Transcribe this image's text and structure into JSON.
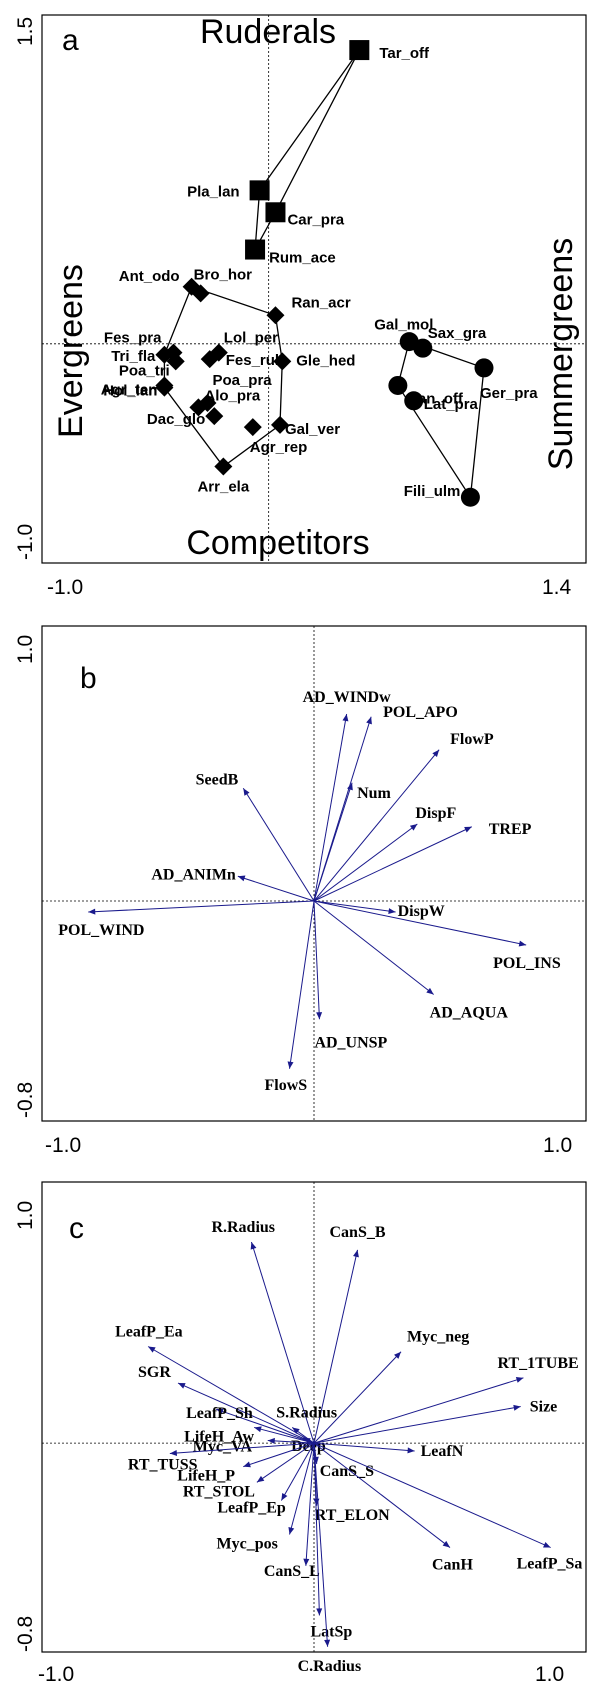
{
  "chart_data": [
    {
      "panel": "a",
      "type": "scatter",
      "xlim": [
        -1.0,
        1.4
      ],
      "ylim": [
        -1.0,
        1.5
      ],
      "x_tick_labels": [
        "-1.0",
        "1.4"
      ],
      "y_tick_labels": [
        "-1.0",
        "1.5"
      ],
      "annotations": {
        "top": "Ruderals",
        "bottom": "Competitors",
        "left": "Evergreens",
        "right": "Summergreens"
      },
      "groups": [
        {
          "marker": "square",
          "points": [
            {
              "label": "Tar_off",
              "x": 0.4,
              "y": 1.34
            },
            {
              "label": "Pla_lan",
              "x": -0.04,
              "y": 0.7
            },
            {
              "label": "Car_pra",
              "x": 0.03,
              "y": 0.6
            },
            {
              "label": "Rum_ace",
              "x": -0.06,
              "y": 0.43
            }
          ]
        },
        {
          "marker": "diamond",
          "points": [
            {
              "label": "Ant_odo",
              "x": -0.34,
              "y": 0.26
            },
            {
              "label": "Bro_hor",
              "x": -0.3,
              "y": 0.23
            },
            {
              "label": "Ran_acr",
              "x": 0.03,
              "y": 0.13
            },
            {
              "label": "Fes_pra",
              "x": -0.42,
              "y": -0.04
            },
            {
              "label": "Lol_per",
              "x": -0.22,
              "y": -0.04
            },
            {
              "label": "Fes_rub",
              "x": -0.26,
              "y": -0.07
            },
            {
              "label": "Gle_hed",
              "x": 0.06,
              "y": -0.08
            },
            {
              "label": "Tri_fla",
              "x": -0.46,
              "y": -0.05
            },
            {
              "label": "Poa_tri",
              "x": -0.41,
              "y": -0.08
            },
            {
              "label": "Agr_ten",
              "x": -0.46,
              "y": -0.19
            },
            {
              "label": "Poa_pra",
              "x": -0.27,
              "y": -0.27
            },
            {
              "label": "Alo_pra",
              "x": -0.31,
              "y": -0.29
            },
            {
              "label": "Hol_lan",
              "x": -0.46,
              "y": -0.2
            },
            {
              "label": "Dac_glo",
              "x": -0.24,
              "y": -0.33
            },
            {
              "label": "Gal_ver",
              "x": 0.05,
              "y": -0.37
            },
            {
              "label": "Agr_rep",
              "x": -0.07,
              "y": -0.38
            },
            {
              "label": "Arr_ela",
              "x": -0.2,
              "y": -0.56
            }
          ]
        },
        {
          "marker": "circle",
          "points": [
            {
              "label": "Gal_mol",
              "x": 0.62,
              "y": 0.01
            },
            {
              "label": "Sax_gra",
              "x": 0.68,
              "y": -0.02
            },
            {
              "label": "San_off",
              "x": 0.57,
              "y": -0.19
            },
            {
              "label": "Lat_pra",
              "x": 0.64,
              "y": -0.26
            },
            {
              "label": "Ger_pra",
              "x": 0.95,
              "y": -0.11
            },
            {
              "label": "Fili_ulm",
              "x": 0.89,
              "y": -0.7
            }
          ]
        }
      ]
    },
    {
      "panel": "b",
      "type": "biplot",
      "xlim": [
        -1.0,
        1.0
      ],
      "ylim": [
        -0.8,
        1.0
      ],
      "x_tick_labels": [
        "-1.0",
        "1.0"
      ],
      "y_tick_labels": [
        "-0.8",
        "1.0"
      ],
      "vectors": [
        {
          "label": "AD_WINDw",
          "x": 0.12,
          "y": 0.68
        },
        {
          "label": "POL_APO",
          "x": 0.21,
          "y": 0.67
        },
        {
          "label": "FlowP",
          "x": 0.46,
          "y": 0.55
        },
        {
          "label": "SeedB",
          "x": -0.26,
          "y": 0.41
        },
        {
          "label": "Num",
          "x": 0.14,
          "y": 0.43
        },
        {
          "label": "DispF",
          "x": 0.38,
          "y": 0.28
        },
        {
          "label": "TREP",
          "x": 0.58,
          "y": 0.27
        },
        {
          "label": "AD_ANIMn",
          "x": -0.28,
          "y": 0.09
        },
        {
          "label": "POL_WIND",
          "x": -0.83,
          "y": -0.04
        },
        {
          "label": "DispW",
          "x": 0.3,
          "y": -0.04
        },
        {
          "label": "POL_INS",
          "x": 0.78,
          "y": -0.16
        },
        {
          "label": "AD_AQUA",
          "x": 0.44,
          "y": -0.34
        },
        {
          "label": "AD_UNSP",
          "x": 0.02,
          "y": -0.43
        },
        {
          "label": "FlowS",
          "x": -0.09,
          "y": -0.61
        }
      ]
    },
    {
      "panel": "c",
      "type": "biplot",
      "xlim": [
        -1.0,
        1.0
      ],
      "ylim": [
        -0.8,
        1.0
      ],
      "x_tick_labels": [
        "-1.0",
        "1.0"
      ],
      "y_tick_labels": [
        "-0.8",
        "1.0"
      ],
      "vectors": [
        {
          "label": "R.Radius",
          "x": -0.23,
          "y": 0.77
        },
        {
          "label": "CanS_B",
          "x": 0.16,
          "y": 0.74
        },
        {
          "label": "LeafP_Ea",
          "x": -0.61,
          "y": 0.37
        },
        {
          "label": "Myc_neg",
          "x": 0.32,
          "y": 0.35
        },
        {
          "label": "RT_1TUBE",
          "x": 0.77,
          "y": 0.25
        },
        {
          "label": "SGR",
          "x": -0.5,
          "y": 0.23
        },
        {
          "label": "LeafP_Sh",
          "x": -0.36,
          "y": 0.13
        },
        {
          "label": "S.Radius",
          "x": -0.08,
          "y": 0.06
        },
        {
          "label": "Size",
          "x": 0.76,
          "y": 0.14
        },
        {
          "label": "LifeH_Aw",
          "x": -0.22,
          "y": 0.06
        },
        {
          "label": "Deep",
          "x": -0.04,
          "y": 0.02
        },
        {
          "label": "Myc_VA",
          "x": -0.17,
          "y": 0.01
        },
        {
          "label": "LeafN",
          "x": 0.37,
          "y": -0.03
        },
        {
          "label": "RT_TUSS",
          "x": -0.53,
          "y": -0.04
        },
        {
          "label": "LifeH_P",
          "x": -0.26,
          "y": -0.09
        },
        {
          "label": "CanS_S",
          "x": 0.01,
          "y": -0.08
        },
        {
          "label": "RT_STOL",
          "x": -0.21,
          "y": -0.15
        },
        {
          "label": "LeafP_Ep",
          "x": -0.12,
          "y": -0.22
        },
        {
          "label": "RT_ELON",
          "x": 0.01,
          "y": -0.24
        },
        {
          "label": "LeafP_Sa",
          "x": 0.87,
          "y": -0.4
        },
        {
          "label": "Myc_pos",
          "x": -0.09,
          "y": -0.35
        },
        {
          "label": "CanH",
          "x": 0.5,
          "y": -0.4
        },
        {
          "label": "CanS_L",
          "x": -0.03,
          "y": -0.47
        },
        {
          "label": "LatSp",
          "x": 0.02,
          "y": -0.66
        },
        {
          "label": "C.Radius",
          "x": 0.05,
          "y": -0.78
        }
      ]
    }
  ]
}
